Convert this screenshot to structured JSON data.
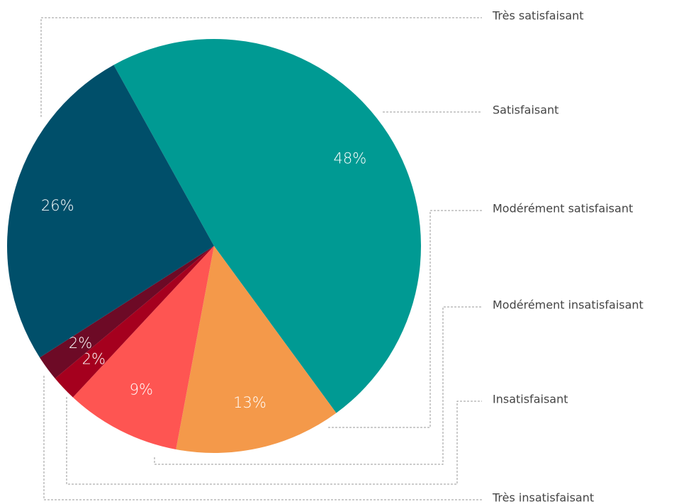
{
  "chart_data": {
    "type": "pie",
    "categories": [
      "Satisfaisant",
      "Modérément satisfaisant",
      "Modérément insatisfaisant",
      "Insatisfaisant",
      "Très insatisfaisant",
      "Très satisfaisant"
    ],
    "values": [
      48,
      13,
      9,
      2,
      2,
      26
    ],
    "value_labels": [
      "48%",
      "13%",
      "9%",
      "2%",
      "2%",
      "26%"
    ],
    "colors": [
      "#009a93",
      "#f4994a",
      "#fe5552",
      "#a5001e",
      "#6d0a26",
      "#004f6a"
    ]
  }
}
